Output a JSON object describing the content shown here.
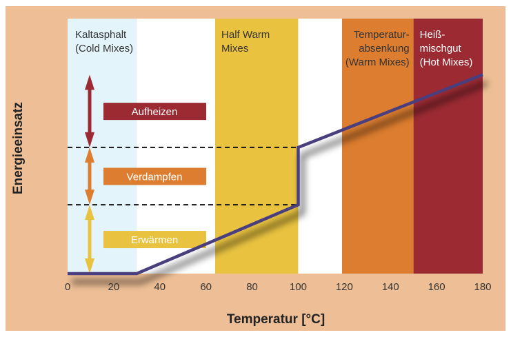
{
  "chart_data": {
    "type": "line",
    "title": "",
    "xlabel": "Temperatur [°C]",
    "ylabel": "Energieeinsatz",
    "xlim": [
      0,
      180
    ],
    "ylim": [
      0,
      100
    ],
    "x_ticks": [
      "0",
      "20",
      "40",
      "60",
      "80",
      "100",
      "120",
      "140",
      "160",
      "180"
    ],
    "grid": false,
    "line": {
      "color": "#4a3f7e",
      "points": [
        [
          0,
          0
        ],
        [
          30,
          0
        ],
        [
          100,
          27
        ],
        [
          100,
          49.5
        ],
        [
          180,
          78
        ]
      ]
    },
    "bands": [
      {
        "from": 0,
        "to": 30,
        "color": "#e3f4fb",
        "label": [
          "Kaltasphalt",
          "(Cold Mixes)"
        ],
        "text_color": "#333333",
        "align": "left"
      },
      {
        "from": 30,
        "to": 64,
        "color": "#ffffff",
        "label": [],
        "text_color": "#333333",
        "align": "left"
      },
      {
        "from": 64,
        "to": 100,
        "color": "#e9c340",
        "label": [
          "Half Warm",
          "Mixes"
        ],
        "text_color": "#333333",
        "align": "left"
      },
      {
        "from": 100,
        "to": 119,
        "color": "#ffffff",
        "label": [],
        "text_color": "#333333",
        "align": "left"
      },
      {
        "from": 119,
        "to": 150,
        "color": "#dc7d2f",
        "label": [
          "Temperatur-",
          "absenkung",
          "(Warm Mixes)"
        ],
        "text_color": "#333333",
        "align": "right"
      },
      {
        "from": 150,
        "to": 180,
        "color": "#9b2a33",
        "label": [
          "Heiß-",
          "mischgut",
          "(Hot Mixes)"
        ],
        "text_color": "#ffffff",
        "align": "left"
      }
    ],
    "dashed_levels": [
      27,
      49.5
    ],
    "phases": [
      {
        "label": "Erwärmen",
        "from": 0,
        "to": 27,
        "color": "#e9c340"
      },
      {
        "label": "Verdampfen",
        "from": 27,
        "to": 49.5,
        "color": "#dc7d2f"
      },
      {
        "label": "Aufheizen",
        "from": 49.5,
        "to": 78,
        "color": "#9b2a33"
      }
    ],
    "background_color": "#eebf96"
  }
}
